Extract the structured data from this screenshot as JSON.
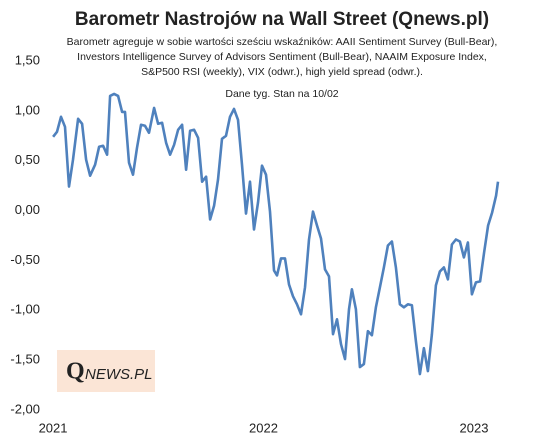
{
  "chart_data": {
    "type": "line",
    "title": "Barometr Nastrojów na Wall Street (Qnews.pl)",
    "subtitle": [
      "Barometr agreguje w sobie wartości sześciu wskaźników: AAII Sentiment Survey (Bull-Bear),",
      "Investors Intelligence Survey of Advisors Sentiment (Bull-Bear), NAAIM Exposure Index,",
      "S&P500 RSI (weekly), VIX (odwr.), high yield spread (odwr.)."
    ],
    "annotation": "Dane tyg. Stan na 10/02",
    "logo": [
      "Q",
      "NEWS.PL"
    ],
    "color": "#4f81bd",
    "grid": false,
    "x": [
      2021,
      2021.019,
      2021.038,
      2021.057,
      2021.076,
      2021.095,
      2021.119,
      2021.138,
      2021.157,
      2021.176,
      2021.2,
      2021.219,
      2021.238,
      2021.257,
      2021.271,
      2021.29,
      2021.309,
      2021.328,
      2021.342,
      2021.361,
      2021.38,
      2021.399,
      2021.418,
      2021.437,
      2021.456,
      2021.48,
      2021.499,
      2021.518,
      2021.537,
      2021.556,
      2021.575,
      2021.594,
      2021.613,
      2021.632,
      2021.651,
      2021.67,
      2021.689,
      2021.708,
      2021.727,
      2021.746,
      2021.765,
      2021.784,
      2021.803,
      2021.822,
      2021.841,
      2021.86,
      2021.879,
      2021.898,
      2021.917,
      2021.936,
      2021.955,
      2021.974,
      2021.993,
      2022.012,
      2022.031,
      2022.05,
      2022.064,
      2022.083,
      2022.102,
      2022.121,
      2022.14,
      2022.159,
      2022.178,
      2022.197,
      2022.216,
      2022.235,
      2022.254,
      2022.273,
      2022.292,
      2022.311,
      2022.33,
      2022.349,
      2022.368,
      2022.387,
      2022.406,
      2022.42,
      2022.439,
      2022.458,
      2022.477,
      2022.496,
      2022.515,
      2022.534,
      2022.553,
      2022.572,
      2022.591,
      2022.61,
      2022.629,
      2022.648,
      2022.667,
      2022.686,
      2022.705,
      2022.724,
      2022.743,
      2022.762,
      2022.781,
      2022.8,
      2022.819,
      2022.838,
      2022.857,
      2022.876,
      2022.895,
      2022.914,
      2022.933,
      2022.952,
      2022.971,
      2022.99,
      2023.009,
      2023.029,
      2023.048,
      2023.067,
      2023.086,
      2023.105,
      2023.114
    ],
    "values": [
      0.74,
      0.79,
      0.94,
      0.84,
      0.24,
      0.51,
      0.92,
      0.87,
      0.51,
      0.35,
      0.46,
      0.64,
      0.65,
      0.56,
      1.15,
      1.17,
      1.15,
      0.99,
      0.99,
      0.48,
      0.36,
      0.63,
      0.86,
      0.85,
      0.78,
      1.03,
      0.87,
      0.88,
      0.68,
      0.56,
      0.66,
      0.81,
      0.86,
      0.41,
      0.8,
      0.81,
      0.73,
      0.29,
      0.34,
      -0.09,
      0.05,
      0.31,
      0.72,
      0.75,
      0.94,
      1.02,
      0.91,
      0.46,
      -0.03,
      0.29,
      -0.19,
      0.08,
      0.45,
      0.36,
      -0.01,
      -0.6,
      -0.65,
      -0.48,
      -0.48,
      -0.74,
      -0.86,
      -0.94,
      -1.04,
      -0.77,
      -0.29,
      -0.01,
      -0.15,
      -0.28,
      -0.59,
      -0.66,
      -1.24,
      -1.09,
      -1.34,
      -1.49,
      -0.99,
      -0.79,
      -0.99,
      -1.57,
      -1.54,
      -1.21,
      -1.25,
      -0.97,
      -0.77,
      -0.57,
      -0.35,
      -0.31,
      -0.57,
      -0.94,
      -0.97,
      -0.94,
      -0.95,
      -1.31,
      -1.64,
      -1.38,
      -1.61,
      -1.24,
      -0.75,
      -0.61,
      -0.57,
      -0.69,
      -0.34,
      -0.29,
      -0.31,
      -0.47,
      -0.32,
      -0.84,
      -0.72,
      -0.71,
      -0.42,
      -0.15,
      -0.02,
      0.15,
      0.29
    ],
    "xlim": [
      2020.976,
      2023.252
    ],
    "xticks": [
      2021,
      2022,
      2023
    ],
    "ylim": [
      -2,
      1.5
    ],
    "yticks": [
      {
        "value": 1.5,
        "label": "1,50"
      },
      {
        "value": 1,
        "label": "1,00"
      },
      {
        "value": 0.5,
        "label": "0,50"
      },
      {
        "value": 0,
        "label": "0,00"
      },
      {
        "value": -0.5,
        "label": "-0,50"
      },
      {
        "value": -1,
        "label": "-1,00"
      },
      {
        "value": -1.5,
        "label": "-1,50"
      },
      {
        "value": -2,
        "label": "-2,00"
      }
    ]
  }
}
